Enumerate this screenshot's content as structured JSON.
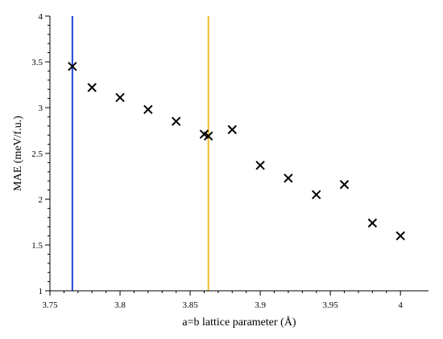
{
  "chart_data": {
    "type": "scatter",
    "title": "",
    "xlabel": "a=b lattice parameter (Å)",
    "ylabel": "MAE (meV/f.u.)",
    "xlim": [
      3.75,
      4.02
    ],
    "ylim": [
      1,
      4
    ],
    "x_ticks": [
      "3.75",
      "3.8",
      "3.85",
      "3.9",
      "3.95",
      "4"
    ],
    "y_ticks": [
      "1",
      "1.5",
      "2",
      "2.5",
      "3",
      "3.5",
      "4"
    ],
    "grid": false,
    "marker": "x",
    "series": [
      {
        "x": [
          3.766,
          3.78,
          3.8,
          3.82,
          3.84,
          3.86,
          3.863,
          3.88,
          3.9,
          3.92,
          3.94,
          3.96,
          3.98,
          4.0
        ],
        "y": [
          3.45,
          3.22,
          3.11,
          2.98,
          2.85,
          2.71,
          2.69,
          2.76,
          2.37,
          2.23,
          2.05,
          2.16,
          1.74,
          1.6
        ]
      }
    ],
    "vertical_lines": [
      {
        "x": 3.766,
        "color": "#1f45d6"
      },
      {
        "x": 3.863,
        "color": "#f2b92d"
      }
    ]
  }
}
